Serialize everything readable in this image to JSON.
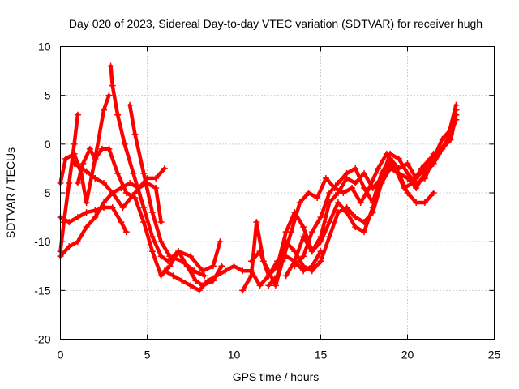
{
  "chart_data": {
    "type": "scatter",
    "title": "Day 020 of 2023, Sidereal Day-to-day VTEC variation (SDTVAR) for receiver hugh",
    "xlabel": "GPS time / hours",
    "ylabel": "SDTVAR / TECUs",
    "xlim": [
      0,
      25
    ],
    "ylim": [
      -20,
      10
    ],
    "xticks": [
      0,
      5,
      10,
      15,
      20,
      25
    ],
    "yticks": [
      -20,
      -15,
      -10,
      -5,
      0,
      5,
      10
    ],
    "xtick_labels": [
      "0",
      "5",
      "10",
      "15",
      "20",
      "25"
    ],
    "ytick_labels": [
      "-20",
      "-15",
      "-10",
      "-5",
      "0",
      "5",
      "10"
    ],
    "grid": true,
    "marker": "plus",
    "color": "#ff0000",
    "series": [
      {
        "x": [
          0.0,
          0.2,
          0.5,
          0.8,
          1.0
        ],
        "y": [
          -11.0,
          -8.0,
          -4.0,
          0.0,
          3.0
        ]
      },
      {
        "x": [
          0.0,
          0.3,
          0.8,
          1.2,
          1.5,
          2.0,
          2.5,
          2.8
        ],
        "y": [
          -4.0,
          -1.5,
          -1.0,
          -3.0,
          -6.0,
          -1.5,
          3.5,
          5.0
        ]
      },
      {
        "x": [
          2.9,
          3.0,
          3.3,
          3.7,
          4.2,
          4.8,
          5.3,
          5.8,
          6.2,
          6.8,
          7.5,
          8.2,
          8.8,
          9.2
        ],
        "y": [
          8.0,
          6.0,
          3.0,
          0.0,
          -3.0,
          -6.5,
          -9.5,
          -11.5,
          -12.0,
          -11.0,
          -11.5,
          -13.0,
          -12.5,
          -10.0
        ]
      },
      {
        "x": [
          4.0,
          4.3,
          4.8,
          5.3,
          5.8,
          6.3,
          7.0,
          7.7,
          8.3
        ],
        "y": [
          4.0,
          1.0,
          -3.0,
          -7.0,
          -10.0,
          -11.5,
          -12.0,
          -13.0,
          -13.5
        ]
      },
      {
        "x": [
          0.0,
          0.5,
          1.0,
          1.5,
          2.0,
          2.5,
          3.0,
          3.5,
          3.8
        ],
        "y": [
          -7.5,
          -8.0,
          -7.5,
          -7.0,
          -6.8,
          -6.5,
          -6.5,
          -8.0,
          -9.0
        ]
      },
      {
        "x": [
          0.8,
          1.5,
          2.0,
          2.5,
          3.0,
          3.6,
          4.3,
          5.0,
          5.5,
          6.0
        ],
        "y": [
          -2.0,
          -2.8,
          -3.5,
          -4.0,
          -5.0,
          -6.5,
          -5.0,
          -3.5,
          -3.5,
          -2.5
        ]
      },
      {
        "x": [
          1.0,
          1.3,
          1.7,
          2.0,
          2.4,
          2.8,
          3.3,
          3.8,
          4.3,
          4.8,
          5.3,
          5.8,
          6.3,
          6.8,
          7.3,
          7.8,
          8.2,
          8.8,
          9.3
        ],
        "y": [
          -4.0,
          -2.0,
          -0.5,
          -1.5,
          -0.5,
          -0.5,
          -3.0,
          -5.0,
          -5.5,
          -8.0,
          -11.0,
          -13.5,
          -12.5,
          -11.0,
          -12.5,
          -14.0,
          -14.5,
          -14.0,
          -12.5
        ]
      },
      {
        "x": [
          0.0,
          0.5,
          1.0,
          1.5,
          2.0,
          2.5,
          3.0,
          3.5,
          4.0,
          4.5,
          5.0,
          5.5,
          5.8
        ],
        "y": [
          -11.5,
          -10.5,
          -10.0,
          -8.5,
          -7.5,
          -6.0,
          -5.0,
          -4.5,
          -4.0,
          -4.5,
          -4.0,
          -4.5,
          -8.0
        ]
      },
      {
        "x": [
          6.0,
          6.5,
          7.0,
          7.5,
          8.0,
          8.5,
          9.0,
          9.5,
          10.0,
          10.5,
          11.0,
          11.5,
          12.0,
          12.5,
          13.0,
          13.5,
          14.0,
          14.5,
          15.0
        ],
        "y": [
          -13.0,
          -13.5,
          -14.0,
          -14.5,
          -15.0,
          -14.0,
          -13.5,
          -13.0,
          -12.5,
          -13.0,
          -13.0,
          -14.5,
          -13.5,
          -12.0,
          -11.5,
          -12.0,
          -13.0,
          -12.5,
          -11.0
        ]
      },
      {
        "x": [
          10.5,
          11.0,
          11.3,
          11.7,
          12.0,
          12.4,
          12.8,
          13.3,
          13.8,
          14.3,
          14.8,
          15.3,
          15.8,
          16.3,
          16.8,
          17.3,
          17.8,
          18.3,
          18.8,
          19.3,
          19.8,
          20.3,
          20.8,
          21.3,
          21.8,
          22.3,
          22.8
        ],
        "y": [
          -15.0,
          -13.5,
          -8.0,
          -12.0,
          -13.0,
          -14.5,
          -12.0,
          -9.0,
          -6.0,
          -5.0,
          -5.5,
          -3.5,
          -4.5,
          -5.0,
          -4.5,
          -6.0,
          -4.5,
          -2.5,
          -1.0,
          -2.5,
          -4.5,
          -4.0,
          -2.5,
          -1.5,
          -1.0,
          0.5,
          4.0
        ]
      },
      {
        "x": [
          11.0,
          11.5,
          12.0,
          12.5,
          13.0,
          13.5,
          14.0,
          14.5,
          15.0,
          15.5,
          16.0,
          16.5,
          17.0,
          17.5,
          18.0,
          18.5,
          19.0,
          19.5,
          20.0,
          20.5,
          21.0,
          21.5,
          22.0,
          22.5,
          22.8
        ],
        "y": [
          -12.0,
          -11.0,
          -13.5,
          -12.5,
          -9.0,
          -7.0,
          -8.5,
          -11.0,
          -9.5,
          -6.0,
          -5.0,
          -3.5,
          -4.0,
          -3.0,
          -4.5,
          -3.5,
          -1.0,
          -1.5,
          -3.0,
          -4.0,
          -3.5,
          -1.5,
          0.5,
          1.5,
          3.5
        ]
      },
      {
        "x": [
          12.0,
          12.5,
          13.0,
          13.5,
          14.0,
          14.5,
          15.0,
          15.5,
          16.0,
          16.5,
          17.0,
          17.5,
          18.0,
          18.5,
          19.0,
          19.5,
          20.0,
          20.5,
          21.0,
          21.5
        ],
        "y": [
          -14.5,
          -13.5,
          -10.0,
          -11.0,
          -12.5,
          -13.0,
          -12.0,
          -9.5,
          -7.0,
          -6.5,
          -7.5,
          -8.0,
          -7.0,
          -4.0,
          -2.0,
          -3.0,
          -5.0,
          -6.0,
          -6.0,
          -5.0
        ]
      },
      {
        "x": [
          13.0,
          13.5,
          14.0,
          14.5,
          15.0,
          15.5,
          16.0,
          16.5,
          17.0,
          17.5,
          18.0,
          18.5,
          19.0,
          19.5,
          20.0,
          20.5,
          21.0,
          21.5,
          22.0,
          22.5,
          22.8
        ],
        "y": [
          -13.5,
          -12.0,
          -9.5,
          -11.0,
          -10.0,
          -8.0,
          -6.0,
          -7.0,
          -8.5,
          -9.0,
          -6.5,
          -4.0,
          -2.5,
          -3.0,
          -3.5,
          -4.5,
          -3.0,
          -2.0,
          -0.5,
          1.0,
          2.5
        ]
      },
      {
        "x": [
          13.5,
          14.0,
          14.5,
          15.0,
          15.5,
          16.0,
          16.5,
          17.0,
          17.5,
          18.0,
          18.5,
          19.0,
          19.5,
          20.0,
          20.5,
          21.0,
          21.5,
          22.0,
          22.5,
          22.8
        ],
        "y": [
          -12.5,
          -11.5,
          -9.0,
          -7.5,
          -5.0,
          -4.0,
          -3.0,
          -2.5,
          -4.5,
          -6.0,
          -3.0,
          -1.5,
          -2.5,
          -2.0,
          -3.5,
          -2.5,
          -1.0,
          -0.5,
          0.5,
          3.0
        ]
      }
    ]
  }
}
